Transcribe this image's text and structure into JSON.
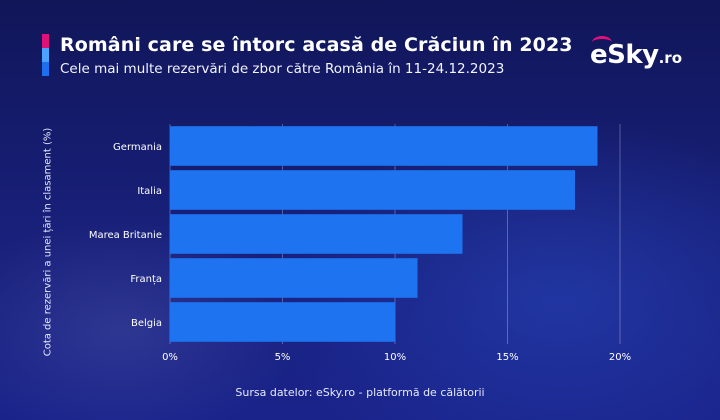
{
  "header": {
    "title": "Români care se întorc acasă de Crăciun în 2023",
    "subtitle": "Cele mai multe rezervări de zbor către România în 11-24.12.2023"
  },
  "brand": {
    "logo_main": "eSky",
    "logo_tld": ".ro"
  },
  "footer": {
    "source": "Sursa datelor: eSky.ro - platformă de călătorii"
  },
  "colors": {
    "bar": "#1e73f0",
    "background": "#141a66",
    "accent_pink": "#e0117a",
    "accent_light_blue": "#4aa3ff",
    "accent_blue": "#1e6ff0"
  },
  "chart_data": {
    "type": "bar",
    "orientation": "horizontal",
    "categories": [
      "Germania",
      "Italia",
      "Marea Britanie",
      "Franța",
      "Belgia"
    ],
    "values": [
      19,
      18,
      13,
      11,
      10
    ],
    "title": "Români care se întorc acasă de Crăciun în 2023",
    "subtitle": "Cele mai multe rezervări de zbor către România în 11-24.12.2023",
    "xlabel": "",
    "ylabel": "Cota de rezervări a unei țări în clasament (%)",
    "xlim": [
      0,
      20
    ],
    "x_ticks": [
      "0%",
      "5%",
      "10%",
      "15%",
      "20%"
    ],
    "x_tick_values": [
      0,
      5,
      10,
      15,
      20
    ],
    "grid": true,
    "legend": "none"
  }
}
